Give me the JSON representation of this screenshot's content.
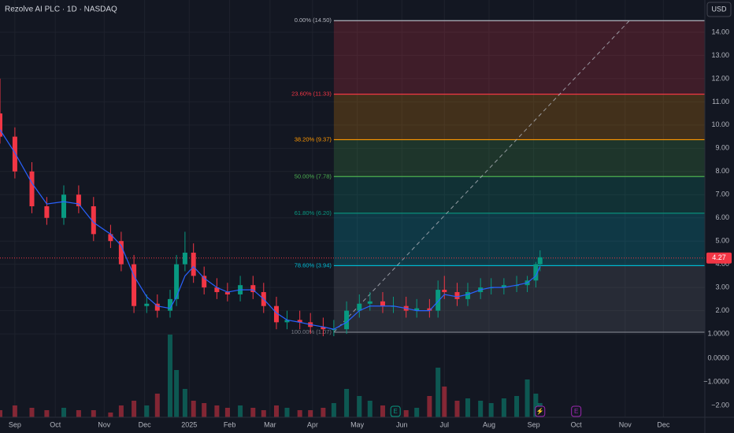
{
  "chart_data": {
    "type": "candlestick",
    "title": "Rezolve AI PLC · 1D · NASDAQ",
    "currency": "USD",
    "x": [
      0,
      7,
      15,
      22,
      30,
      37,
      44,
      52,
      57,
      63,
      69,
      74,
      80,
      83,
      87,
      91,
      96,
      102,
      107,
      113,
      119,
      124,
      130,
      135,
      141,
      146,
      152,
      157,
      163,
      169,
      174,
      180,
      185,
      191,
      196,
      202,
      206,
      209,
      215,
      220,
      226,
      231,
      237,
      243,
      248,
      252,
      254
    ],
    "open": [
      10.5,
      9.5,
      8.0,
      6.5,
      6.0,
      7.0,
      6.5,
      5.3,
      5.0,
      4.0,
      2.2,
      2.3,
      2.0,
      2.5,
      4.0,
      4.5,
      3.5,
      3.0,
      2.8,
      2.7,
      3.1,
      2.8,
      2.2,
      1.5,
      1.6,
      1.5,
      1.3,
      1.2,
      1.2,
      2.0,
      2.3,
      2.4,
      2.2,
      2.2,
      2.0,
      2.1,
      2.0,
      2.9,
      2.8,
      2.5,
      2.8,
      3.0,
      3.0,
      3.1,
      3.1,
      3.3,
      4.0
    ],
    "high": [
      12.0,
      9.9,
      8.4,
      6.9,
      7.4,
      7.4,
      6.9,
      5.7,
      5.4,
      4.4,
      2.7,
      2.7,
      2.9,
      4.4,
      5.4,
      4.9,
      3.9,
      3.4,
      3.2,
      3.5,
      3.5,
      3.2,
      2.6,
      2.0,
      2.0,
      1.9,
      1.7,
      1.6,
      2.4,
      2.7,
      2.8,
      2.8,
      2.6,
      2.6,
      2.5,
      2.5,
      3.3,
      3.5,
      3.2,
      3.2,
      3.4,
      3.4,
      3.4,
      3.5,
      3.5,
      4.1,
      4.6
    ],
    "low": [
      9.2,
      7.7,
      6.2,
      5.7,
      5.7,
      6.2,
      5.0,
      4.7,
      3.7,
      1.9,
      1.9,
      1.7,
      1.7,
      2.2,
      3.7,
      3.2,
      2.7,
      2.5,
      2.4,
      2.4,
      2.5,
      1.9,
      1.2,
      1.2,
      1.2,
      1.0,
      0.9,
      0.9,
      1.0,
      1.7,
      2.0,
      1.9,
      1.9,
      1.7,
      1.7,
      1.7,
      1.7,
      2.5,
      2.2,
      2.2,
      2.5,
      2.7,
      2.7,
      2.8,
      2.8,
      3.0,
      3.7
    ],
    "close": [
      9.5,
      8.0,
      6.5,
      6.0,
      7.0,
      6.5,
      5.3,
      5.0,
      4.0,
      2.2,
      2.3,
      2.0,
      2.5,
      4.0,
      4.5,
      3.5,
      3.0,
      2.8,
      2.7,
      3.1,
      2.8,
      2.2,
      1.5,
      1.6,
      1.5,
      1.3,
      1.2,
      1.2,
      2.0,
      2.3,
      2.4,
      2.2,
      2.2,
      2.0,
      2.1,
      2.0,
      2.9,
      2.8,
      2.5,
      2.8,
      3.0,
      3.0,
      3.1,
      3.1,
      3.3,
      4.0,
      4.3
    ],
    "up_color": "#089981",
    "down_color": "#f23645",
    "ma": {
      "color": "#2962ff",
      "values": [
        9.8,
        8.8,
        7.5,
        6.6,
        6.7,
        6.6,
        5.8,
        5.3,
        4.8,
        3.5,
        2.6,
        2.2,
        2.1,
        2.6,
        3.5,
        3.9,
        3.4,
        3.0,
        2.8,
        2.9,
        2.9,
        2.5,
        1.9,
        1.6,
        1.5,
        1.4,
        1.3,
        1.2,
        1.5,
        2.0,
        2.2,
        2.2,
        2.2,
        2.1,
        2.0,
        2.0,
        2.4,
        2.7,
        2.6,
        2.7,
        2.9,
        3.0,
        3.0,
        3.1,
        3.2,
        3.5,
        3.9
      ]
    },
    "volume": [
      -2.2,
      -2.0,
      -2.1,
      -2.2,
      -2.1,
      -2.2,
      -2.2,
      -2.3,
      -2.0,
      -1.8,
      -2.0,
      -1.5,
      1.0,
      -0.5,
      -1.3,
      -1.8,
      -1.9,
      -2.0,
      -2.1,
      -2.0,
      -2.1,
      -2.2,
      -2.0,
      -2.1,
      -2.2,
      -2.2,
      -2.1,
      -1.9,
      -1.3,
      -1.6,
      -1.8,
      -2.0,
      -2.1,
      -2.2,
      -2.1,
      -1.6,
      -0.4,
      -1.2,
      -1.8,
      -1.7,
      -1.8,
      -1.9,
      -1.7,
      -1.6,
      -0.9,
      -1.5,
      -1.9
    ],
    "xlim": [
      0,
      331.5
    ],
    "xticks": [
      {
        "value": 7,
        "label": "Sep"
      },
      {
        "value": 26,
        "label": "Oct"
      },
      {
        "value": 49,
        "label": "Nov"
      },
      {
        "value": 68,
        "label": "Dec"
      },
      {
        "value": 89,
        "label": "2025"
      },
      {
        "value": 108,
        "label": "Feb"
      },
      {
        "value": 127,
        "label": "Mar"
      },
      {
        "value": 147,
        "label": "Apr"
      },
      {
        "value": 168,
        "label": "May"
      },
      {
        "value": 189,
        "label": "Jun"
      },
      {
        "value": 209,
        "label": "Jul"
      },
      {
        "value": 230,
        "label": "Aug"
      },
      {
        "value": 251,
        "label": "Sep"
      },
      {
        "value": 271,
        "label": "Oct"
      },
      {
        "value": 294,
        "label": "Nov"
      },
      {
        "value": 312,
        "label": "Dec"
      }
    ],
    "ylim": [
      0.46,
      15.39
    ],
    "yticks": [
      {
        "value": 14,
        "label": "14.00"
      },
      {
        "value": 13,
        "label": "13.00"
      },
      {
        "value": 12,
        "label": "12.00"
      },
      {
        "value": 11,
        "label": "11.00"
      },
      {
        "value": 10,
        "label": "10.00"
      },
      {
        "value": 9,
        "label": "9.00"
      },
      {
        "value": 8,
        "label": "8.00"
      },
      {
        "value": 7,
        "label": "7.00"
      },
      {
        "value": 6,
        "label": "6.00"
      },
      {
        "value": 5,
        "label": "5.00"
      },
      {
        "value": 4,
        "label": "4.00"
      },
      {
        "value": 3,
        "label": "3.00"
      },
      {
        "value": 2,
        "label": "2.00"
      },
      {
        "value": 1,
        "label": "1.0000"
      }
    ],
    "volume_ylim": [
      -2.5,
      0.5
    ],
    "volume_ticks": [
      {
        "value": 0,
        "label": "0.0000"
      },
      {
        "value": -1,
        "label": "−1.0000"
      },
      {
        "value": -2,
        "label": "−2.00"
      }
    ],
    "last_price": 4.27,
    "last_price_color": "#f23645",
    "fib": {
      "x_start": 157,
      "levels": [
        {
          "label": "0.00% (14.50)",
          "price": 14.5,
          "color": "#b2b5be"
        },
        {
          "label": "23.60% (11.33)",
          "price": 11.33,
          "color": "#f23645"
        },
        {
          "label": "38.20% (9.37)",
          "price": 9.37,
          "color": "#ff9800"
        },
        {
          "label": "50.00% (7.78)",
          "price": 7.78,
          "color": "#4caf50"
        },
        {
          "label": "61.80% (6.20)",
          "price": 6.2,
          "color": "#089981"
        },
        {
          "label": "78.60% (3.94)",
          "price": 3.94,
          "color": "#00bcd4"
        },
        {
          "label": "100.00% (1.07)",
          "price": 1.07,
          "color": "#787b86"
        }
      ],
      "trend_x": [
        157,
        296
      ],
      "trend_y": [
        1.07,
        14.5
      ]
    },
    "events": [
      {
        "label": "E",
        "x": 186,
        "color": "#089981"
      },
      {
        "label": "⚡",
        "x": 254,
        "color": "#9c27b0"
      },
      {
        "label": "E",
        "x": 271,
        "color": "#9c27b0"
      }
    ]
  }
}
